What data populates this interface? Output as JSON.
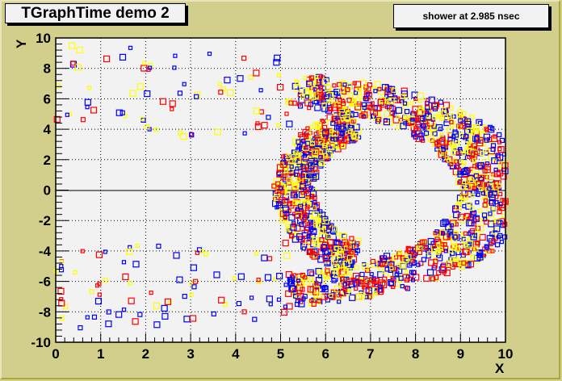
{
  "title": "TGraphTime demo 2",
  "label": "shower at 2.985 nsec",
  "colors": {
    "canvas_bg": "#d2cf8c",
    "plot_bg": "#f2f2f2",
    "frame": "#000000",
    "red": "#ff0000",
    "blue": "#0000ff",
    "yellow": "#ffff00"
  },
  "chart_data": {
    "type": "scatter",
    "title": "TGraphTime demo 2",
    "annotation": "shower at 2.985 nsec",
    "xlabel": "X",
    "ylabel": "Y",
    "xlim": [
      0,
      10
    ],
    "ylim": [
      -10,
      10
    ],
    "x_ticks": [
      "0",
      "1",
      "2",
      "3",
      "4",
      "5",
      "6",
      "7",
      "8",
      "9",
      "10"
    ],
    "y_ticks": [
      "-10",
      "-8",
      "-6",
      "-4",
      "-2",
      "0",
      "2",
      "4",
      "6",
      "8",
      "10"
    ],
    "grid": true,
    "zero_line": "y=0",
    "marker": "open-square",
    "series": [
      {
        "name": "red",
        "color": "#ff0000"
      },
      {
        "name": "blue",
        "color": "#0000ff"
      },
      {
        "name": "yellow",
        "color": "#ffff00"
      }
    ],
    "structure": {
      "inner_arc": {
        "center_x": 7.2,
        "center_y": 0,
        "radius_x": 1.9,
        "radius_y": 4.5,
        "density": "high"
      },
      "outer_arc": {
        "center_x": 4.5,
        "center_y": 0,
        "radius_x": 5.3,
        "radius_y": 6.5,
        "density": "high near x=8-10"
      },
      "trailing_points": "sparse scatter from x=0 to x=5 at |y| 4-10"
    }
  }
}
